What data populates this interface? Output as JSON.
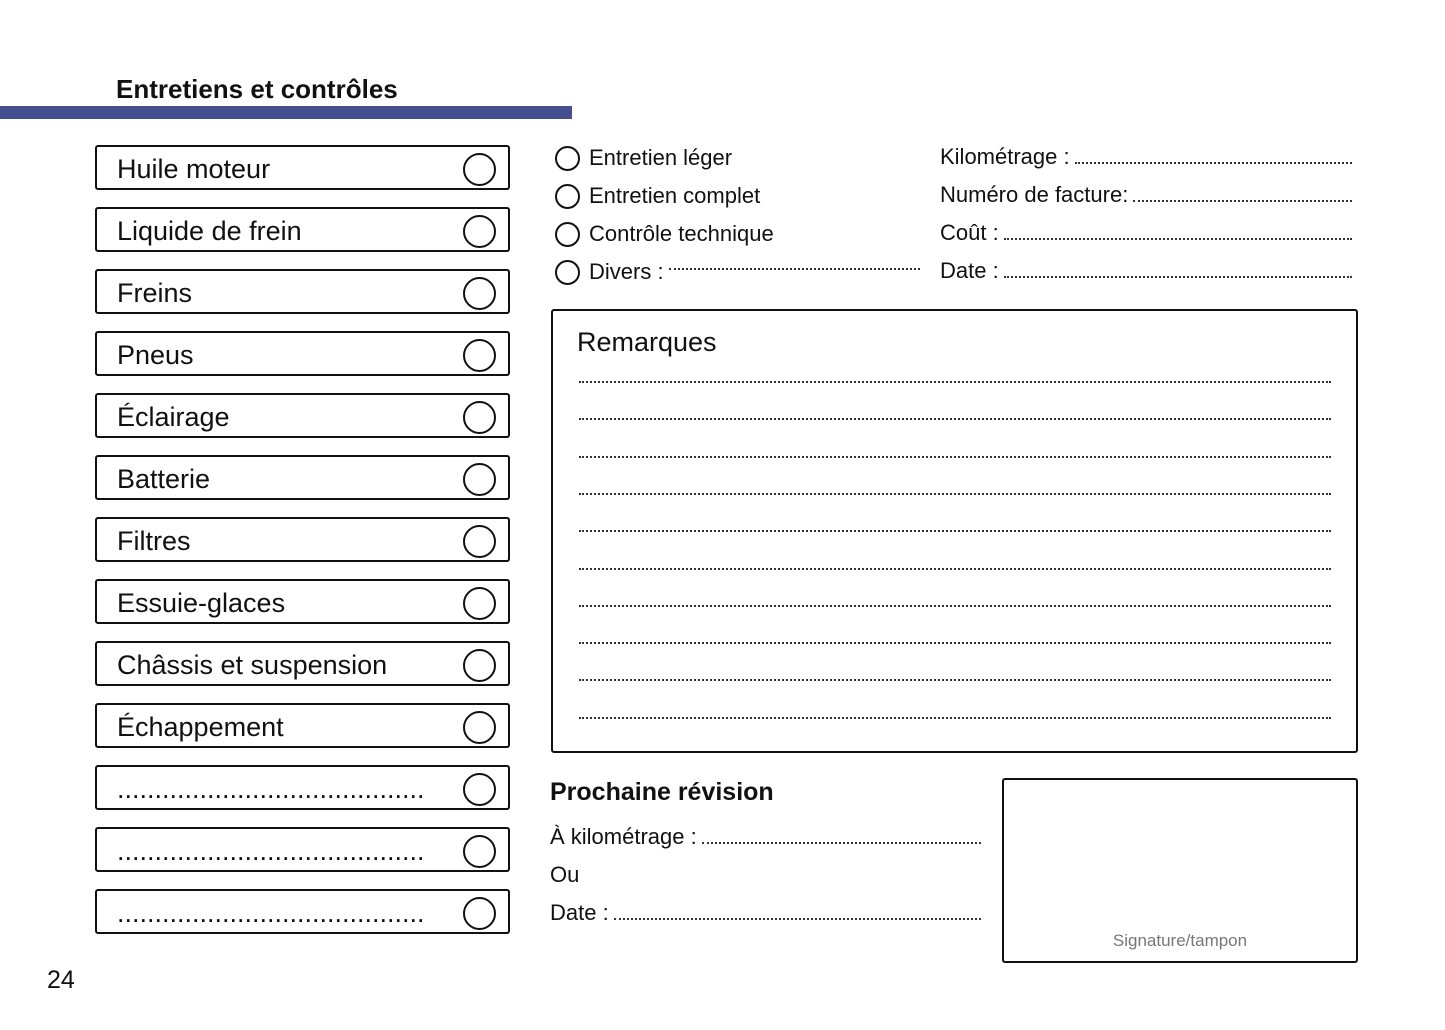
{
  "header": {
    "title": "Entretiens et contrôles",
    "accent_color": "#454e8f"
  },
  "checklist": [
    {
      "label": "Huile moteur"
    },
    {
      "label": "Liquide de frein"
    },
    {
      "label": "Freins"
    },
    {
      "label": "Pneus"
    },
    {
      "label": "Éclairage"
    },
    {
      "label": "Batterie"
    },
    {
      "label": "Filtres"
    },
    {
      "label": "Essuie-glaces"
    },
    {
      "label": "Châssis et suspension"
    },
    {
      "label": "Échappement"
    },
    {
      "label": "........................................."
    },
    {
      "label": "........................................."
    },
    {
      "label": "........................................."
    }
  ],
  "service_types": [
    {
      "label": "Entretien léger"
    },
    {
      "label": "Entretien complet"
    },
    {
      "label": "Contrôle technique"
    },
    {
      "label": "Divers :"
    }
  ],
  "fields": [
    {
      "label": "Kilométrage :"
    },
    {
      "label": "Numéro de facture:"
    },
    {
      "label": "Coût :"
    },
    {
      "label": "Date :"
    }
  ],
  "remarks": {
    "title": "Remarques"
  },
  "next_service": {
    "title": "Prochaine révision",
    "mileage_label": "À kilométrage :",
    "or_label": "Ou",
    "date_label": "Date :"
  },
  "signature": {
    "label": "Signature/tampon"
  },
  "page_number": "24"
}
